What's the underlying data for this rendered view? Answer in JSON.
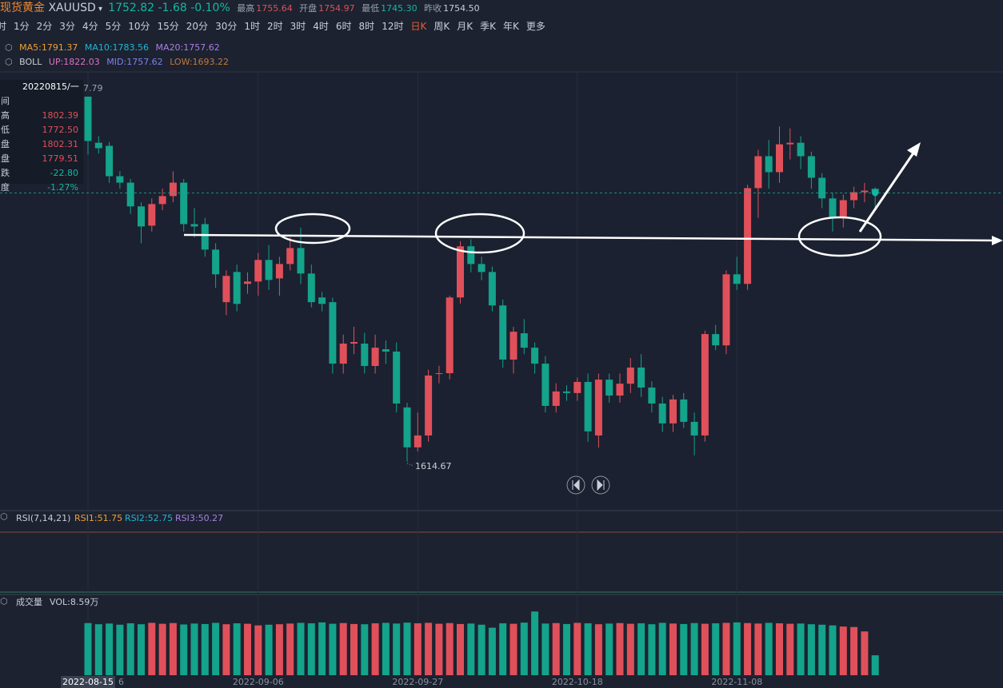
{
  "header": {
    "name": "现货黄金",
    "symbol": "XAUUSD",
    "price": "1752.82",
    "change": "-1.68",
    "change_pct": "-0.10%",
    "high_label": "最高",
    "high": "1755.64",
    "open_label": "开盘",
    "open": "1754.97",
    "low_label": "最低",
    "low": "1745.30",
    "prev_label": "昨收",
    "prev": "1754.50"
  },
  "periods": [
    "时",
    "1分",
    "2分",
    "3分",
    "4分",
    "5分",
    "10分",
    "15分",
    "20分",
    "30分",
    "1时",
    "2时",
    "3时",
    "4时",
    "6时",
    "8时",
    "12时",
    "日K",
    "周K",
    "月K",
    "季K",
    "年K",
    "更多"
  ],
  "active_period": 17,
  "ma_legend": [
    "MA5:1791.37",
    "MA10:1783.56",
    "MA20:1757.62"
  ],
  "boll_legend": {
    "name": "BOLL",
    "up": "UP:1822.03",
    "mid": "MID:1757.62",
    "low": "LOW:1693.22"
  },
  "tooltip": {
    "date": "20220815/一",
    "rows": [
      [
        "间",
        ""
      ],
      [
        "高",
        "1802.39"
      ],
      [
        "低",
        "1772.50"
      ],
      [
        "盘",
        "1802.31"
      ],
      [
        "盘",
        "1779.51"
      ],
      [
        "跌",
        "-22.80"
      ],
      [
        "度",
        "-1.27%"
      ]
    ],
    "cut_label": "7.79"
  },
  "rsi_legend": {
    "name": "RSI(7,14,21)",
    "rsi1": "RSI1:51.75",
    "rsi2": "RSI2:52.75",
    "rsi3": "RSI3:50.27"
  },
  "vol_legend": {
    "name": "成交量",
    "vol": "VOL:8.59万"
  },
  "chart_data": {
    "type": "candlestick",
    "ylim": [
      1590,
      1815
    ],
    "vlim": [
      0,
      30
    ],
    "up_color": "#e0505a",
    "down_color": "#14a38b",
    "low_annotation": "1614.67",
    "edge_label": "6",
    "candles": [
      [
        1802.31,
        1802.39,
        1772.5,
        1779.51
      ],
      [
        1778.6,
        1782.0,
        1773.0,
        1775.8
      ],
      [
        1777.0,
        1779.0,
        1758.0,
        1761.4
      ],
      [
        1761.4,
        1764.0,
        1755.0,
        1758.1
      ],
      [
        1758.1,
        1760.0,
        1742.0,
        1745.9
      ],
      [
        1745.9,
        1748.0,
        1727.0,
        1735.6
      ],
      [
        1736.0,
        1750.0,
        1733.0,
        1747.1
      ],
      [
        1747.1,
        1755.0,
        1744.0,
        1751.2
      ],
      [
        1751.2,
        1764.0,
        1748.0,
        1758.1
      ],
      [
        1758.1,
        1760.0,
        1733.0,
        1736.8
      ],
      [
        1736.8,
        1745.0,
        1730.0,
        1735.6
      ],
      [
        1736.8,
        1740.0,
        1720.0,
        1723.7
      ],
      [
        1723.7,
        1727.0,
        1704.0,
        1711.0
      ],
      [
        1696.7,
        1713.0,
        1690.0,
        1710.2
      ],
      [
        1712.2,
        1716.0,
        1692.0,
        1695.8
      ],
      [
        1706.1,
        1712.0,
        1701.0,
        1707.3
      ],
      [
        1707.3,
        1722.0,
        1700.0,
        1718.4
      ],
      [
        1718.4,
        1726.0,
        1703.0,
        1708.1
      ],
      [
        1708.9,
        1720.0,
        1700.0,
        1716.3
      ],
      [
        1716.3,
        1730.0,
        1713.0,
        1724.5
      ],
      [
        1724.5,
        1735.0,
        1706.0,
        1711.4
      ],
      [
        1711.4,
        1716.0,
        1694.0,
        1696.7
      ],
      [
        1699.1,
        1702.0,
        1692.0,
        1695.8
      ],
      [
        1696.7,
        1699.0,
        1660.0,
        1665.1
      ],
      [
        1665.1,
        1680.0,
        1660.0,
        1675.4
      ],
      [
        1675.4,
        1684.0,
        1670.0,
        1676.2
      ],
      [
        1675.4,
        1681.0,
        1660.0,
        1663.9
      ],
      [
        1663.9,
        1680.0,
        1660.0,
        1673.3
      ],
      [
        1672.5,
        1677.0,
        1665.0,
        1671.3
      ],
      [
        1671.3,
        1676.0,
        1640.0,
        1644.6
      ],
      [
        1642.6,
        1645.0,
        1614.67,
        1622.1
      ],
      [
        1622.1,
        1640.0,
        1620.0,
        1628.2
      ],
      [
        1628.2,
        1662.0,
        1625.0,
        1659.0
      ],
      [
        1659.8,
        1664.0,
        1655.0,
        1660.2
      ],
      [
        1660.2,
        1700.0,
        1657.0,
        1699.1
      ],
      [
        1699.1,
        1728.0,
        1696.0,
        1725.4
      ],
      [
        1725.4,
        1729.0,
        1712.0,
        1716.3
      ],
      [
        1716.3,
        1720.0,
        1708.0,
        1712.2
      ],
      [
        1712.2,
        1715.0,
        1692.0,
        1695.0
      ],
      [
        1695.0,
        1698.0,
        1663.0,
        1667.2
      ],
      [
        1667.2,
        1684.0,
        1660.0,
        1681.5
      ],
      [
        1680.7,
        1688.0,
        1670.0,
        1673.3
      ],
      [
        1673.3,
        1676.0,
        1660.0,
        1665.1
      ],
      [
        1665.1,
        1669.0,
        1640.0,
        1643.4
      ],
      [
        1643.4,
        1655.0,
        1640.0,
        1650.8
      ],
      [
        1650.8,
        1654.0,
        1646.0,
        1650.0
      ],
      [
        1650.0,
        1658.0,
        1646.0,
        1655.7
      ],
      [
        1655.7,
        1660.0,
        1625.0,
        1630.3
      ],
      [
        1628.2,
        1660.0,
        1622.0,
        1656.9
      ],
      [
        1656.9,
        1660.0,
        1645.0,
        1648.7
      ],
      [
        1648.7,
        1660.0,
        1645.0,
        1654.8
      ],
      [
        1654.8,
        1668.0,
        1650.0,
        1663.1
      ],
      [
        1663.1,
        1670.0,
        1648.0,
        1652.8
      ],
      [
        1652.8,
        1656.0,
        1640.0,
        1644.6
      ],
      [
        1644.6,
        1648.0,
        1630.0,
        1634.4
      ],
      [
        1634.4,
        1649.0,
        1630.0,
        1646.7
      ],
      [
        1646.7,
        1650.0,
        1632.0,
        1635.2
      ],
      [
        1635.2,
        1640.0,
        1618.0,
        1628.2
      ],
      [
        1628.2,
        1682.0,
        1625.0,
        1680.3
      ],
      [
        1680.3,
        1685.0,
        1672.0,
        1674.5
      ],
      [
        1674.5,
        1713.0,
        1670.0,
        1711.0
      ],
      [
        1711.0,
        1720.0,
        1703.0,
        1706.1
      ],
      [
        1706.1,
        1757.0,
        1703.0,
        1755.3
      ],
      [
        1755.3,
        1775.0,
        1740.0,
        1771.7
      ],
      [
        1771.7,
        1780.0,
        1755.0,
        1763.5
      ],
      [
        1763.5,
        1787.0,
        1758.0,
        1777.8
      ],
      [
        1777.8,
        1786.0,
        1770.0,
        1778.6
      ],
      [
        1778.6,
        1782.0,
        1765.0,
        1771.7
      ],
      [
        1771.7,
        1774.0,
        1755.0,
        1760.6
      ],
      [
        1760.6,
        1763.0,
        1745.0,
        1750.0
      ],
      [
        1750.0,
        1753.0,
        1733.0,
        1740.1
      ],
      [
        1740.1,
        1752.0,
        1735.0,
        1749.1
      ],
      [
        1749.1,
        1756.0,
        1745.0,
        1753.2
      ],
      [
        1753.2,
        1758.0,
        1748.0,
        1754.0
      ],
      [
        1754.97,
        1755.64,
        1745.3,
        1752.82
      ]
    ],
    "volumes": [
      22.5,
      22,
      22.3,
      21.8,
      22.4,
      22,
      22.6,
      22.2,
      22.5,
      21.9,
      22.3,
      22.1,
      22.6,
      22,
      22.4,
      22.2,
      21.5,
      21.8,
      22,
      22.3,
      22.6,
      22.4,
      22.8,
      22.2,
      22.5,
      22.1,
      22,
      22.4,
      22.6,
      22.3,
      22.7,
      22.4,
      22.6,
      22.2,
      22.5,
      22.1,
      22.3,
      21.8,
      20.5,
      22.4,
      22.2,
      22.7,
      27.5,
      22.3,
      22.5,
      22.1,
      22.6,
      22.4,
      22,
      22.3,
      22.5,
      22.2,
      22.4,
      22,
      22.6,
      22.3,
      22.1,
      22.5,
      22.2,
      22.4,
      22.6,
      22.8,
      22.5,
      22.3,
      22.6,
      22.4,
      22.2,
      22.3,
      22,
      21.8,
      21.5,
      21,
      20.8,
      18.9,
      8.59
    ],
    "categories": [
      "2022-08-15",
      null,
      null,
      null,
      null,
      null,
      null,
      null,
      null,
      null,
      null,
      null,
      null,
      null,
      null,
      null,
      "2022-09-06",
      null,
      null,
      null,
      null,
      null,
      null,
      null,
      null,
      null,
      null,
      null,
      null,
      null,
      null,
      "2022-09-27",
      null,
      null,
      null,
      null,
      null,
      null,
      null,
      null,
      null,
      null,
      null,
      null,
      null,
      null,
      "2022-10-18",
      null,
      null,
      null,
      null,
      null,
      null,
      null,
      null,
      null,
      null,
      null,
      null,
      null,
      null,
      "2022-11-08",
      null,
      null,
      null,
      null,
      null,
      null,
      null,
      null,
      null,
      null,
      null,
      null,
      null
    ]
  }
}
